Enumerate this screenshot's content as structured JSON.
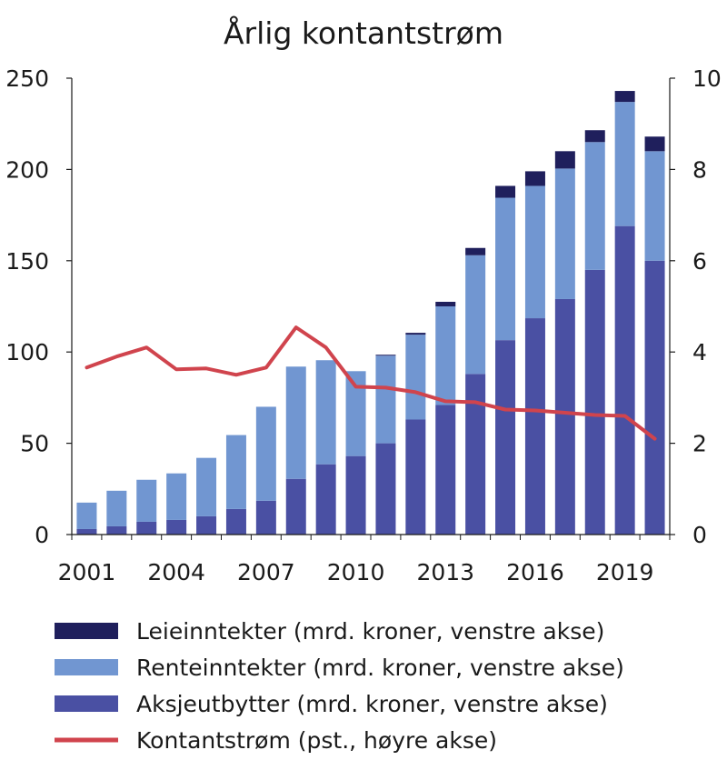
{
  "chart_data": {
    "type": "bar",
    "title": "Årlig kontantstrøm",
    "xlabel": "",
    "ylabel": "",
    "ylim": [
      0,
      250
    ],
    "y2lim": [
      0,
      10
    ],
    "yticks": [
      "0",
      "50",
      "100",
      "150",
      "200",
      "250"
    ],
    "y2ticks": [
      "0",
      "2",
      "4",
      "6",
      "8",
      "10"
    ],
    "x_tick_labels": [
      "2001",
      "2004",
      "2007",
      "2010",
      "2013",
      "2016",
      "2019"
    ],
    "categories": [
      2001,
      2002,
      2003,
      2004,
      2005,
      2006,
      2007,
      2008,
      2009,
      2010,
      2011,
      2012,
      2013,
      2014,
      2015,
      2016,
      2017,
      2018,
      2019,
      2020
    ],
    "stacked": true,
    "grid": false,
    "legend_position": "bottom",
    "series": [
      {
        "name": "Aksjeutbytter (mrd. kroner, venstre akse)",
        "kind": "bar",
        "axis": "left",
        "color": "#4a50a3",
        "values": [
          3,
          4.5,
          7,
          8,
          10,
          14,
          18.5,
          30.5,
          38.5,
          43,
          50,
          63,
          71,
          88,
          106.5,
          118.5,
          129,
          145,
          169,
          150
        ]
      },
      {
        "name": "Renteinntekter (mrd. kroner, venstre akse)",
        "kind": "bar",
        "axis": "left",
        "color": "#7196d1",
        "values": [
          14.5,
          19.5,
          23,
          25.5,
          32,
          40.5,
          51.5,
          61.5,
          57,
          46.5,
          48,
          46.5,
          54,
          65,
          78,
          72.5,
          71.5,
          70,
          68,
          60
        ]
      },
      {
        "name": "Leieinntekter (mrd. kroner, venstre akse)",
        "kind": "bar",
        "axis": "left",
        "color": "#1f1f5c",
        "values": [
          0,
          0,
          0,
          0,
          0,
          0,
          0,
          0,
          0,
          0,
          0.5,
          1,
          2.5,
          4,
          6.5,
          8,
          9.5,
          6.5,
          6,
          8
        ]
      },
      {
        "name": "Kontantstrøm (pst., høyre akse)",
        "kind": "line",
        "axis": "right",
        "color": "#d0444d",
        "values": [
          3.66,
          3.9,
          4.1,
          3.62,
          3.64,
          3.5,
          3.66,
          4.54,
          4.1,
          3.24,
          3.22,
          3.12,
          2.92,
          2.9,
          2.74,
          2.72,
          2.67,
          2.62,
          2.6,
          2.1
        ]
      }
    ],
    "legend_order": [
      "Leieinntekter (mrd. kroner, venstre akse)",
      "Renteinntekter (mrd. kroner, venstre akse)",
      "Aksjeutbytter (mrd. kroner, venstre akse)",
      "Kontantstrøm (pst., høyre akse)"
    ]
  }
}
